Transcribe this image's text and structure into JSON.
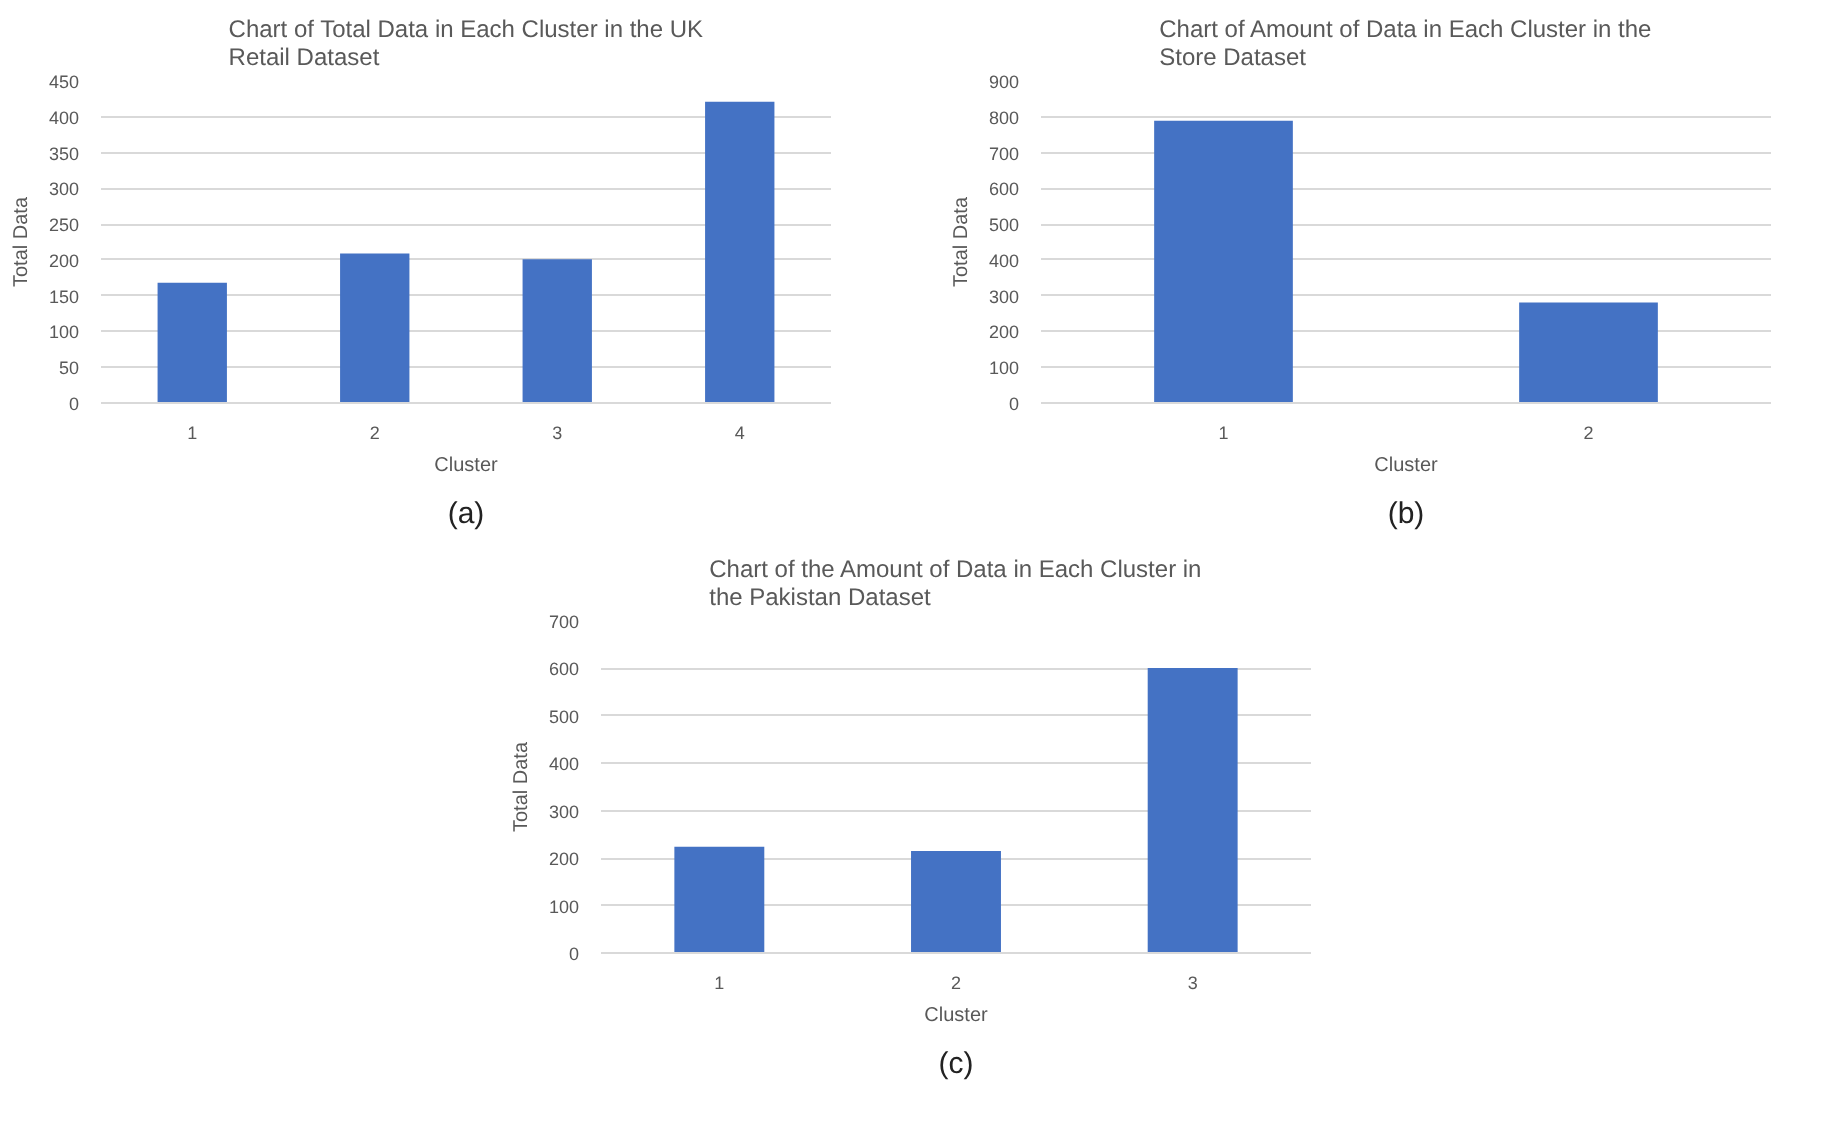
{
  "chart_data": [
    {
      "type": "bar",
      "title": "Chart of Total Data in Each Cluster in the UK\nRetail Dataset",
      "xlabel": "Cluster",
      "ylabel": "Total Data",
      "categories": [
        "1",
        "2",
        "3",
        "4"
      ],
      "values": [
        168,
        209,
        201,
        421
      ],
      "color": "#4472c4",
      "ylim": [
        0,
        450
      ],
      "yticks": [
        0,
        50,
        100,
        150,
        200,
        250,
        300,
        350,
        400,
        450
      ],
      "grid": "y",
      "annotations": [
        "(a)"
      ]
    },
    {
      "type": "bar",
      "title": "Chart of Amount of Data in Each Cluster in the\nStore Dataset",
      "xlabel": "Cluster",
      "ylabel": "Total Data",
      "categories": [
        "1",
        "2"
      ],
      "values": [
        789,
        281
      ],
      "color": "#4472c4",
      "ylim": [
        0,
        900
      ],
      "yticks": [
        0,
        100,
        200,
        300,
        400,
        500,
        600,
        700,
        800,
        900
      ],
      "grid": "y",
      "annotations": [
        "(b)"
      ]
    },
    {
      "type": "bar",
      "title": "Chart of the Amount of Data in Each Cluster in\nthe Pakistan Dataset",
      "xlabel": "Cluster",
      "ylabel": "Total Data",
      "categories": [
        "1",
        "2",
        "3"
      ],
      "values": [
        224,
        215,
        601
      ],
      "color": "#4472c4",
      "ylim": [
        0,
        700
      ],
      "yticks": [
        0,
        100,
        200,
        300,
        400,
        500,
        600,
        700
      ],
      "grid": "y",
      "annotations": [
        "(c)"
      ]
    }
  ]
}
